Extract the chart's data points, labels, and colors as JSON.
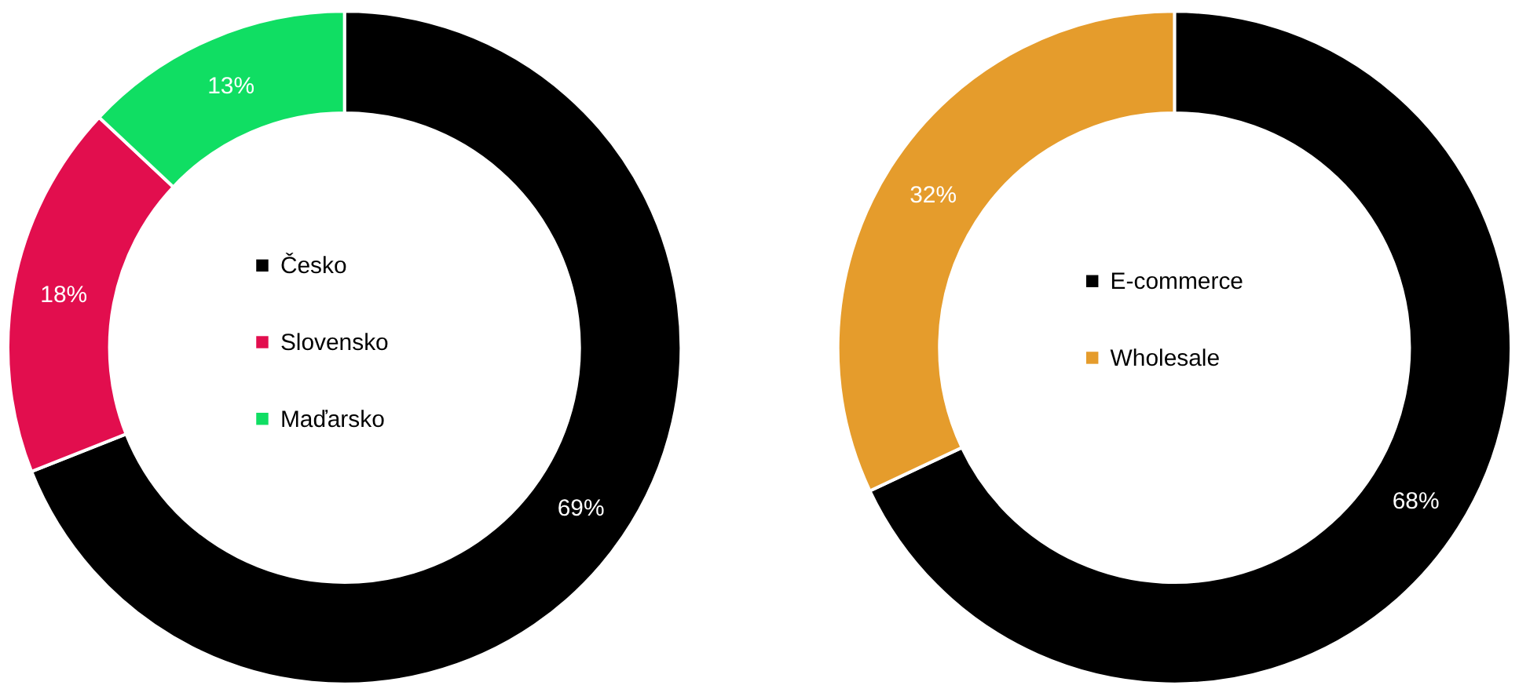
{
  "chart_data": [
    {
      "type": "donut",
      "categories": [
        "Česko",
        "Slovensko",
        "Maďarsko"
      ],
      "values": [
        69,
        18,
        13
      ],
      "colors": [
        "#000000",
        "#e20e4e",
        "#10de63"
      ],
      "value_labels": [
        "69%",
        "18%",
        "13%"
      ],
      "legend": "center"
    },
    {
      "type": "donut",
      "categories": [
        "E-commerce",
        "Wholesale"
      ],
      "values": [
        68,
        32
      ],
      "colors": [
        "#000000",
        "#e59c2c"
      ],
      "value_labels": [
        "68%",
        "32%"
      ],
      "legend": "center"
    }
  ]
}
